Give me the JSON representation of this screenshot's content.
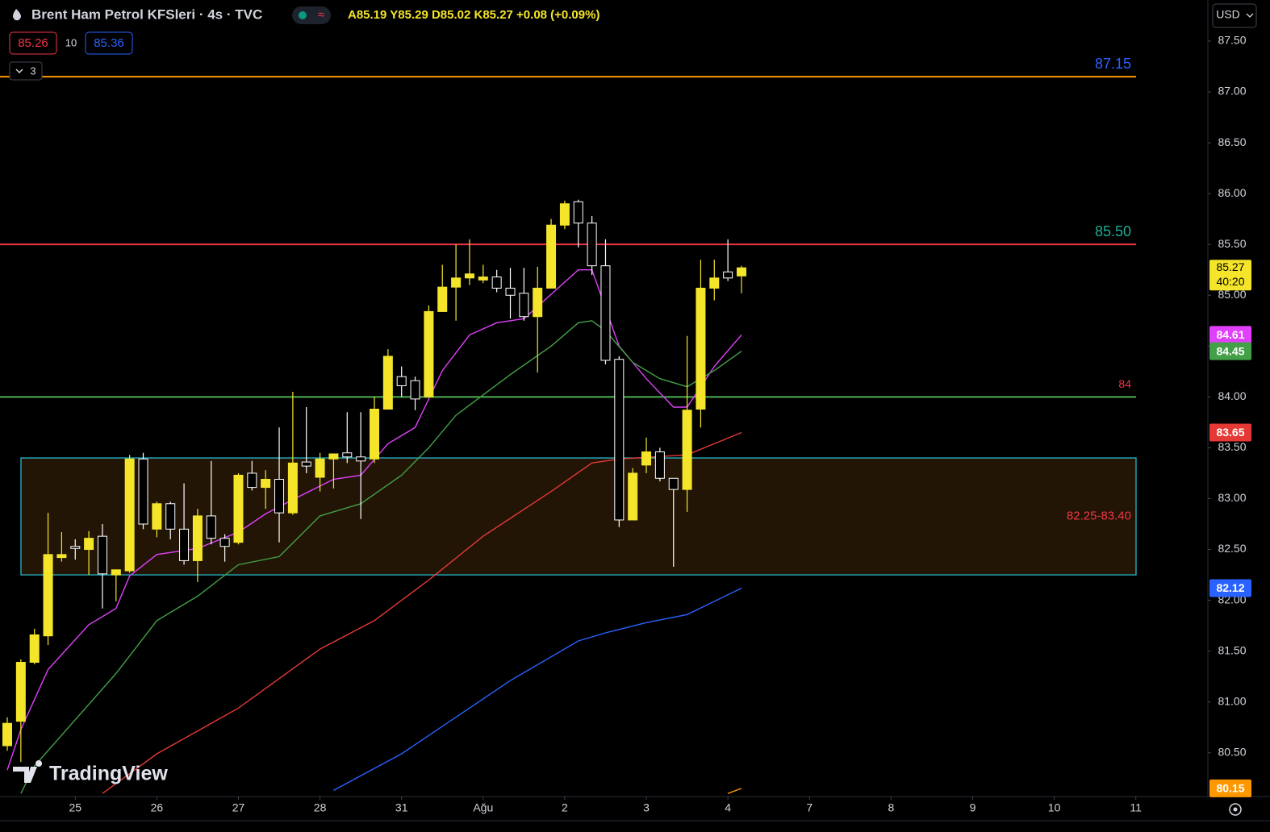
{
  "header": {
    "symbol": "Brent Ham Petrol KFSleri · 4s · TVC",
    "ohlc": "A85.19 Y85.29 D85.02 K85.27 +0.08 (+0.09%)",
    "sell": "85.26",
    "spread": "10",
    "buy": "85.36",
    "indicators": "3",
    "currency": "USD",
    "watermark": "TradingView",
    "countdown": "40:20"
  },
  "chart_data": {
    "type": "candlestick",
    "x": [
      0,
      1,
      2,
      3,
      4,
      5,
      6,
      7,
      8,
      9,
      10,
      11,
      12,
      13,
      14,
      15,
      16,
      17,
      18,
      19,
      20,
      21,
      22,
      23,
      24,
      25,
      26,
      27,
      28,
      29,
      30,
      31,
      32,
      33,
      34,
      35,
      36,
      37,
      38,
      39,
      40,
      41,
      42,
      43,
      44,
      45,
      46,
      47,
      48,
      49,
      50,
      51,
      52,
      53,
      54
    ],
    "open": [
      80.57,
      80.81,
      81.39,
      81.65,
      82.42,
      82.53,
      82.5,
      82.63,
      82.25,
      82.29,
      83.39,
      82.7,
      82.95,
      82.7,
      82.39,
      82.83,
      82.61,
      82.57,
      83.25,
      83.11,
      83.19,
      82.86,
      83.36,
      83.21,
      83.39,
      83.45,
      83.41,
      83.39,
      83.88,
      84.2,
      84.16,
      84.0,
      84.84,
      85.08,
      85.17,
      85.15,
      85.18,
      85.07,
      85.02,
      84.79,
      85.07,
      85.69,
      85.92,
      85.71,
      85.29,
      84.37,
      82.79,
      83.33,
      83.46,
      83.2,
      83.09,
      83.88,
      85.07,
      85.23,
      85.19
    ],
    "high": [
      80.85,
      81.42,
      81.72,
      82.86,
      82.67,
      82.6,
      82.68,
      82.75,
      82.3,
      83.43,
      83.45,
      82.97,
      82.97,
      83.15,
      82.9,
      83.37,
      82.65,
      83.25,
      83.37,
      83.28,
      83.7,
      84.05,
      83.9,
      83.45,
      83.44,
      83.85,
      83.85,
      84.0,
      84.47,
      84.3,
      84.2,
      84.9,
      85.3,
      85.5,
      85.55,
      85.3,
      85.25,
      85.27,
      85.27,
      85.28,
      85.75,
      85.93,
      85.94,
      85.78,
      85.55,
      84.4,
      83.3,
      83.6,
      83.5,
      83.2,
      84.6,
      85.35,
      85.35,
      85.55,
      85.29
    ],
    "low": [
      80.52,
      80.41,
      81.37,
      81.56,
      82.38,
      82.4,
      82.25,
      81.92,
      81.99,
      82.27,
      82.7,
      82.62,
      82.6,
      82.35,
      82.18,
      82.55,
      82.38,
      82.55,
      83.08,
      82.9,
      82.57,
      82.84,
      83.25,
      83.07,
      83.1,
      83.35,
      82.8,
      83.35,
      83.88,
      84.0,
      83.87,
      84.0,
      84.84,
      84.75,
      85.1,
      85.12,
      85.03,
      84.77,
      84.75,
      84.24,
      85.07,
      85.65,
      85.47,
      85.2,
      84.32,
      82.72,
      82.79,
      83.25,
      83.17,
      82.33,
      82.87,
      83.7,
      84.95,
      85.14,
      85.02
    ],
    "close": [
      80.79,
      81.39,
      81.66,
      82.45,
      82.45,
      82.51,
      82.61,
      82.26,
      82.3,
      83.39,
      82.75,
      82.95,
      82.7,
      82.39,
      82.83,
      82.61,
      82.53,
      83.23,
      83.11,
      83.19,
      82.86,
      83.35,
      83.32,
      83.39,
      83.44,
      83.41,
      83.37,
      83.88,
      84.4,
      84.11,
      83.98,
      84.84,
      85.08,
      85.17,
      85.21,
      85.18,
      85.07,
      85.0,
      84.79,
      85.07,
      85.69,
      85.9,
      85.71,
      85.29,
      84.36,
      82.79,
      83.25,
      83.46,
      83.2,
      83.09,
      83.87,
      85.07,
      85.17,
      85.17,
      85.27
    ],
    "up_color": "#f5e52a",
    "down_color": "#000000",
    "down_border": "#ffffff",
    "price_color": "#f5e52a",
    "series": [
      {
        "color": "#e040fb",
        "x": [
          0,
          1,
          3,
          6,
          8,
          9,
          11,
          14,
          17,
          19,
          21,
          24,
          26,
          28,
          30,
          32,
          34,
          36,
          38,
          40,
          42,
          43,
          45,
          47,
          49,
          50,
          52,
          54
        ],
        "values": [
          80.33,
          80.73,
          81.32,
          81.76,
          81.92,
          82.24,
          82.45,
          82.51,
          82.67,
          82.85,
          82.99,
          83.19,
          83.23,
          83.54,
          83.7,
          84.26,
          84.61,
          84.73,
          84.77,
          85.01,
          85.25,
          85.25,
          84.5,
          84.18,
          83.9,
          83.9,
          84.3,
          84.61
        ]
      },
      {
        "color": "#43a047",
        "x": [
          1,
          2,
          8,
          11,
          14,
          17,
          20,
          23,
          26,
          29,
          31,
          33,
          35,
          37,
          40,
          42,
          43,
          44,
          46,
          48,
          50,
          52,
          54
        ],
        "values": [
          80.1,
          80.37,
          81.28,
          81.8,
          82.04,
          82.35,
          82.43,
          82.83,
          82.95,
          83.23,
          83.5,
          83.82,
          84.02,
          84.22,
          84.5,
          84.73,
          84.75,
          84.65,
          84.34,
          84.18,
          84.1,
          84.26,
          84.45
        ]
      },
      {
        "color": "#e53935",
        "x": [
          7,
          11,
          17,
          23,
          27,
          31,
          35,
          40,
          43,
          45,
          50,
          54
        ],
        "values": [
          80.1,
          80.49,
          80.94,
          81.52,
          81.8,
          82.2,
          82.63,
          83.07,
          83.35,
          83.39,
          83.43,
          83.65
        ]
      },
      {
        "color": "#2962ff",
        "x": [
          24,
          29,
          33,
          37,
          42,
          44,
          47,
          50,
          54
        ],
        "values": [
          80.13,
          80.49,
          80.85,
          81.21,
          81.6,
          81.68,
          81.78,
          81.86,
          82.12
        ]
      },
      {
        "color": "#ff9800",
        "x": [
          53,
          54
        ],
        "values": [
          80.1,
          80.15
        ]
      }
    ],
    "lines": [
      {
        "value": 87.15,
        "color": "#ff9800",
        "label_color": "#2962ff"
      },
      {
        "value": 85.5,
        "label": "85.50",
        "color": "#f23645",
        "label_color": "#22ab94"
      },
      {
        "value": 84,
        "color": "#4caf50",
        "label_color": "#f23645"
      }
    ],
    "zone": {
      "low": 82.25,
      "high": 83.4,
      "label": "82.25-83.40",
      "color": "#26c6da",
      "fill": "#221505",
      "label_color": "#f23645"
    },
    "xlim": [
      -0.534,
      88.3
    ],
    "ylim": [
      80.07,
      87.904
    ],
    "xticks": [
      {
        "value": 5,
        "label": "25"
      },
      {
        "value": 11,
        "label": "26"
      },
      {
        "value": 17,
        "label": "27"
      },
      {
        "value": 23,
        "label": "28"
      },
      {
        "value": 29,
        "label": "31"
      },
      {
        "value": 35,
        "label": "Ağu"
      },
      {
        "value": 41,
        "label": "2"
      },
      {
        "value": 47,
        "label": "3"
      },
      {
        "value": 53,
        "label": "4"
      },
      {
        "value": 59,
        "label": "7"
      },
      {
        "value": 65,
        "label": "8"
      },
      {
        "value": 71,
        "label": "9"
      },
      {
        "value": 77,
        "label": "10"
      },
      {
        "value": 83,
        "label": "11"
      }
    ],
    "yticks": [
      {
        "value": 80.5,
        "label": "80.50"
      },
      {
        "value": 81,
        "label": "81.00"
      },
      {
        "value": 81.5,
        "label": "81.50"
      },
      {
        "value": 82,
        "label": "82.00"
      },
      {
        "value": 82.5,
        "label": "82.50"
      },
      {
        "value": 83,
        "label": "83.00"
      },
      {
        "value": 83.5,
        "label": "83.50"
      },
      {
        "value": 84,
        "label": "84.00"
      },
      {
        "value": 84.5,
        "label": "84.50"
      },
      {
        "value": 85,
        "label": "85.00"
      },
      {
        "value": 85.5,
        "label": "85.50"
      },
      {
        "value": 86,
        "label": "86.00"
      },
      {
        "value": 86.5,
        "label": "86.50"
      },
      {
        "value": 87,
        "label": "87.00"
      },
      {
        "value": 87.5,
        "label": "87.50"
      }
    ],
    "grid": false
  }
}
